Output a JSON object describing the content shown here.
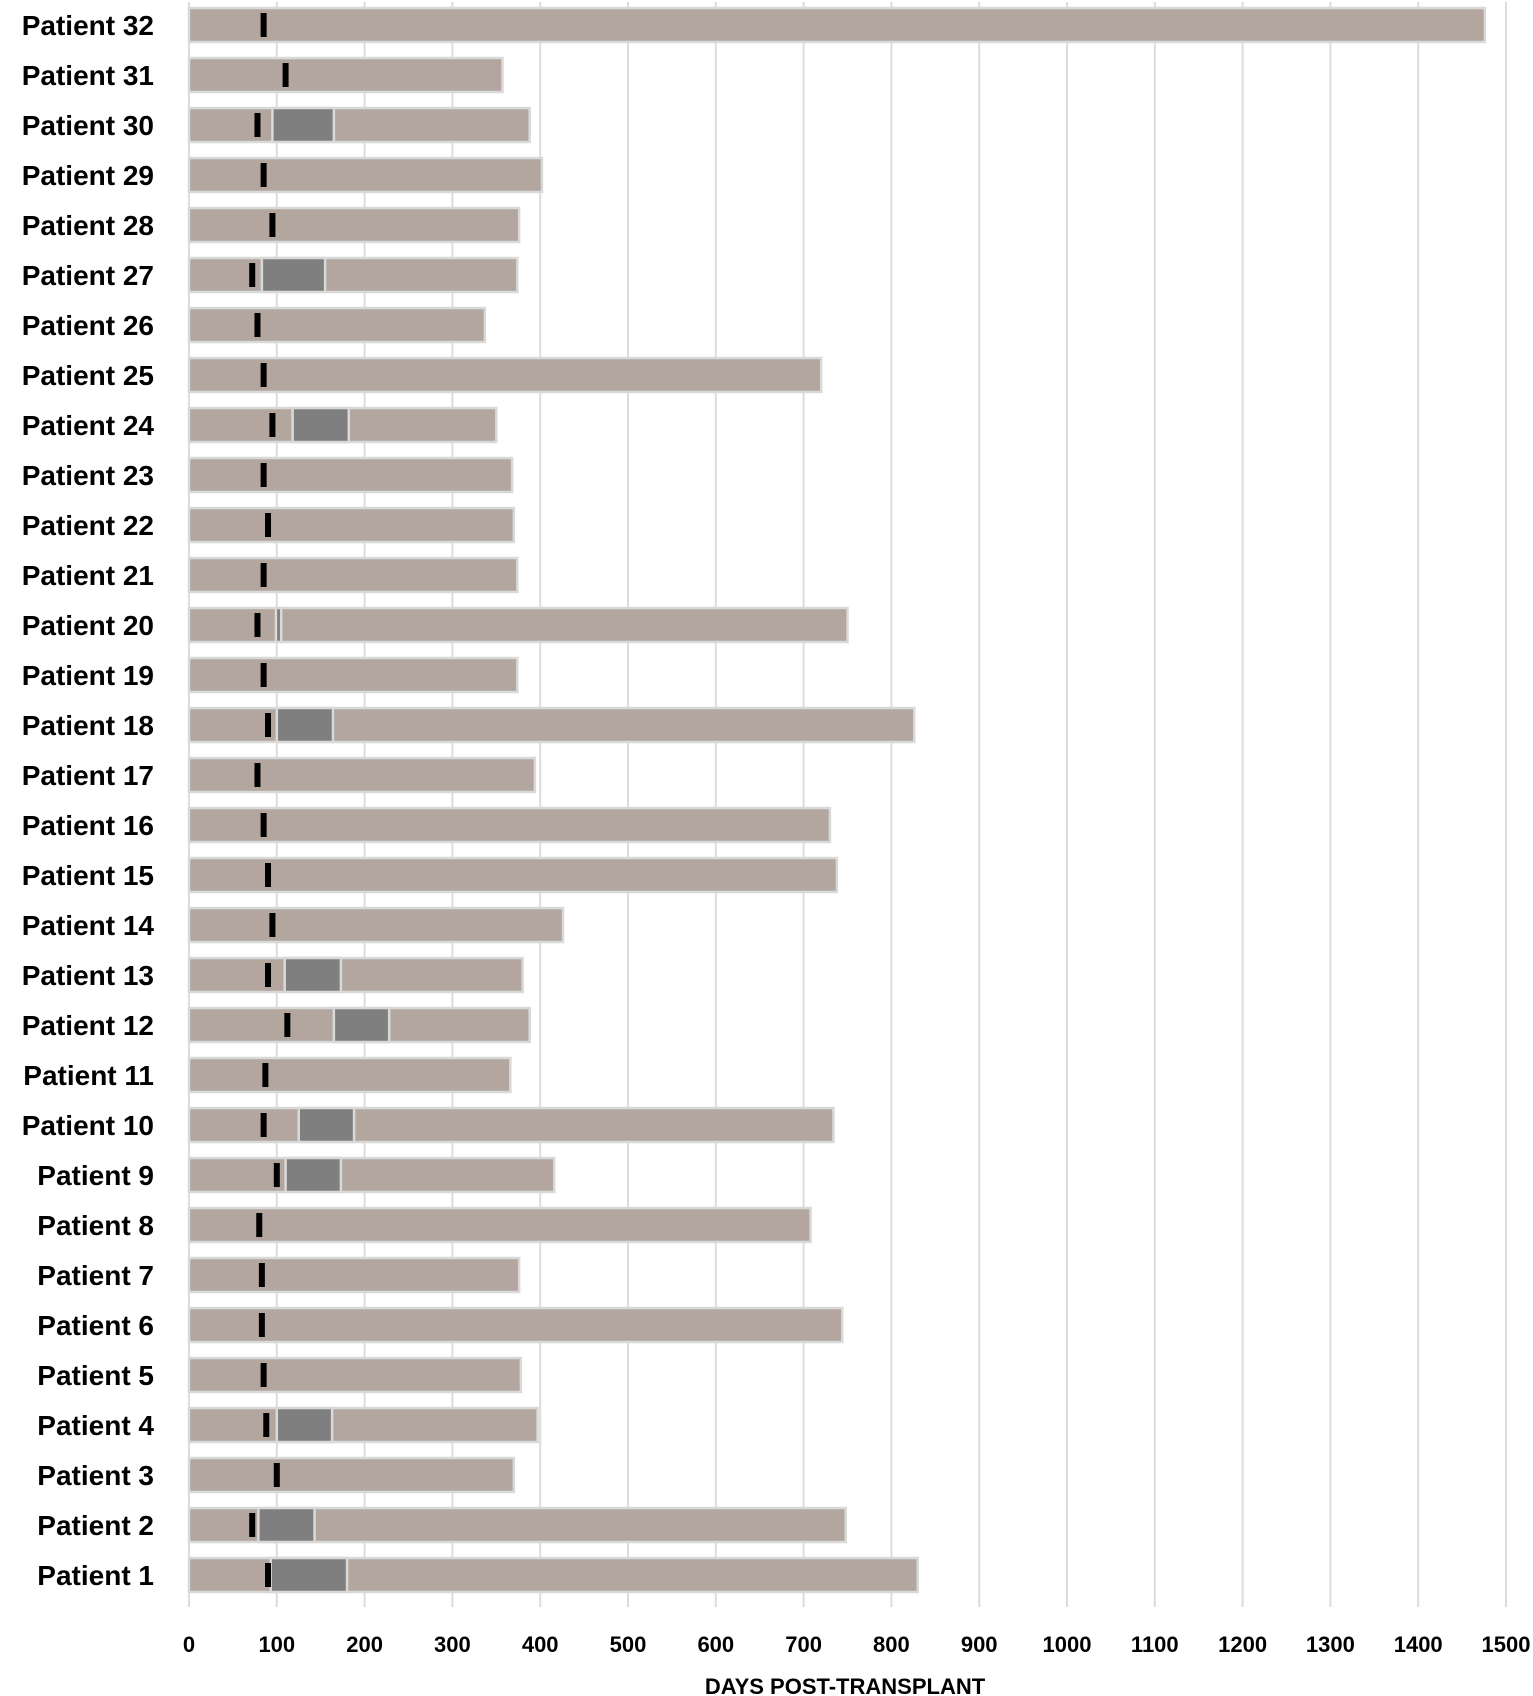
{
  "chart_data": {
    "type": "bar",
    "orientation": "horizontal",
    "xlabel": "DAYS POST-TRANSPLANT",
    "xlim": [
      0,
      1500
    ],
    "xticks": [
      0,
      100,
      200,
      300,
      400,
      500,
      600,
      700,
      800,
      900,
      1000,
      1100,
      1200,
      1300,
      1400,
      1500
    ],
    "grid": true,
    "legend": "none",
    "colors": {
      "bar": "#b3a69e",
      "segment": "#7f7f7f",
      "marker": "#000000"
    },
    "categories": [
      "Patient 32",
      "Patient 31",
      "Patient 30",
      "Patient 29",
      "Patient 28",
      "Patient 27",
      "Patient 26",
      "Patient 25",
      "Patient 24",
      "Patient 23",
      "Patient 22",
      "Patient 21",
      "Patient 20",
      "Patient 19",
      "Patient 18",
      "Patient 17",
      "Patient 16",
      "Patient 15",
      "Patient 14",
      "Patient 13",
      "Patient 12",
      "Patient 11",
      "Patient 10",
      "Patient 9",
      "Patient 8",
      "Patient 7",
      "Patient 6",
      "Patient 5",
      "Patient 4",
      "Patient 3",
      "Patient 2",
      "Patient 1"
    ],
    "rows": [
      {
        "label": "Patient 32",
        "end": 1476,
        "marker": 85,
        "segment": null
      },
      {
        "label": "Patient 31",
        "end": 357,
        "marker": 110,
        "segment": null
      },
      {
        "label": "Patient 30",
        "end": 388,
        "marker": 78,
        "segment": [
          95,
          165
        ]
      },
      {
        "label": "Patient 29",
        "end": 402,
        "marker": 85,
        "segment": null
      },
      {
        "label": "Patient 28",
        "end": 376,
        "marker": 95,
        "segment": null
      },
      {
        "label": "Patient 27",
        "end": 374,
        "marker": 72,
        "segment": [
          83,
          155
        ]
      },
      {
        "label": "Patient 26",
        "end": 337,
        "marker": 78,
        "segment": null
      },
      {
        "label": "Patient 25",
        "end": 720,
        "marker": 85,
        "segment": null
      },
      {
        "label": "Patient 24",
        "end": 350,
        "marker": 95,
        "segment": [
          118,
          182
        ]
      },
      {
        "label": "Patient 23",
        "end": 368,
        "marker": 85,
        "segment": null
      },
      {
        "label": "Patient 22",
        "end": 370,
        "marker": 90,
        "segment": null
      },
      {
        "label": "Patient 21",
        "end": 374,
        "marker": 85,
        "segment": null
      },
      {
        "label": "Patient 20",
        "end": 750,
        "marker": 78,
        "segment": [
          99,
          105
        ]
      },
      {
        "label": "Patient 19",
        "end": 374,
        "marker": 85,
        "segment": null
      },
      {
        "label": "Patient 18",
        "end": 826,
        "marker": 90,
        "segment": [
          100,
          164
        ]
      },
      {
        "label": "Patient 17",
        "end": 394,
        "marker": 78,
        "segment": null
      },
      {
        "label": "Patient 16",
        "end": 730,
        "marker": 85,
        "segment": null
      },
      {
        "label": "Patient 15",
        "end": 738,
        "marker": 90,
        "segment": null
      },
      {
        "label": "Patient 14",
        "end": 426,
        "marker": 95,
        "segment": null
      },
      {
        "label": "Patient 13",
        "end": 380,
        "marker": 90,
        "segment": [
          109,
          173
        ]
      },
      {
        "label": "Patient 12",
        "end": 388,
        "marker": 112,
        "segment": [
          165,
          228
        ]
      },
      {
        "label": "Patient 11",
        "end": 366,
        "marker": 87,
        "segment": null
      },
      {
        "label": "Patient 10",
        "end": 734,
        "marker": 85,
        "segment": [
          125,
          188
        ]
      },
      {
        "label": "Patient 9",
        "end": 416,
        "marker": 100,
        "segment": [
          110,
          173
        ]
      },
      {
        "label": "Patient 8",
        "end": 708,
        "marker": 80,
        "segment": null
      },
      {
        "label": "Patient 7",
        "end": 376,
        "marker": 83,
        "segment": null
      },
      {
        "label": "Patient 6",
        "end": 744,
        "marker": 83,
        "segment": null
      },
      {
        "label": "Patient 5",
        "end": 378,
        "marker": 85,
        "segment": null
      },
      {
        "label": "Patient 4",
        "end": 397,
        "marker": 88,
        "segment": [
          100,
          163
        ]
      },
      {
        "label": "Patient 3",
        "end": 370,
        "marker": 100,
        "segment": null
      },
      {
        "label": "Patient 2",
        "end": 748,
        "marker": 72,
        "segment": [
          79,
          143
        ]
      },
      {
        "label": "Patient 1",
        "end": 830,
        "marker": 90,
        "segment": [
          93,
          180
        ]
      }
    ]
  }
}
